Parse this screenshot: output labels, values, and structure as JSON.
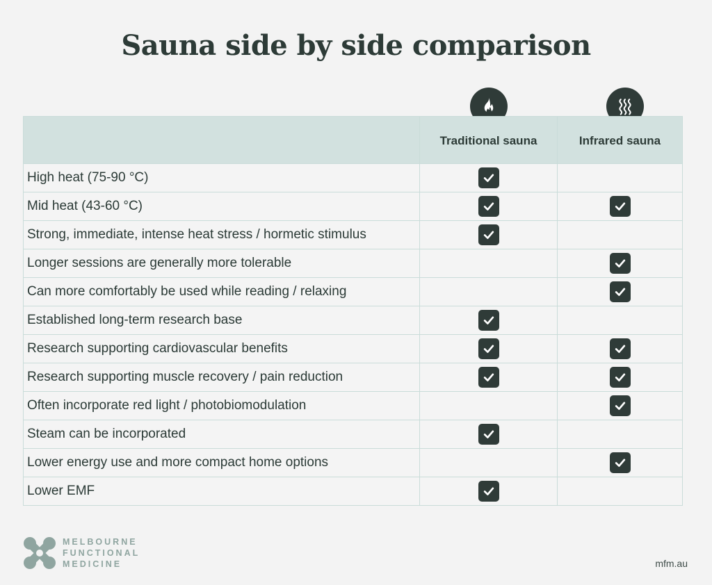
{
  "title": "Sauna side by side comparison",
  "colors": {
    "dark": "#2f3b38",
    "header_bg": "#d2e1df",
    "border": "#c9dcd9",
    "logo": "#8fa5a0"
  },
  "columns": [
    {
      "label": "Traditional sauna",
      "icon": "flame-icon"
    },
    {
      "label": "Infrared sauna",
      "icon": "heat-waves-icon"
    }
  ],
  "rows": [
    {
      "label": "High heat (75-90 °C)",
      "traditional": true,
      "infrared": false
    },
    {
      "label": "Mid heat (43-60 °C)",
      "traditional": true,
      "infrared": true
    },
    {
      "label": "Strong, immediate, intense heat stress / hormetic stimulus",
      "traditional": true,
      "infrared": false
    },
    {
      "label": "Longer sessions are generally more tolerable",
      "traditional": false,
      "infrared": true
    },
    {
      "label": "Can more comfortably be used while reading / relaxing",
      "traditional": false,
      "infrared": true
    },
    {
      "label": "Established long-term research base",
      "traditional": true,
      "infrared": false
    },
    {
      "label": "Research supporting cardiovascular benefits",
      "traditional": true,
      "infrared": true
    },
    {
      "label": "Research supporting muscle recovery / pain reduction",
      "traditional": true,
      "infrared": true
    },
    {
      "label": "Often incorporate red light / photobiomodulation",
      "traditional": false,
      "infrared": true
    },
    {
      "label": "Steam can be incorporated",
      "traditional": true,
      "infrared": false
    },
    {
      "label": "Lower energy use and more compact home options",
      "traditional": false,
      "infrared": true
    },
    {
      "label": "Lower EMF",
      "traditional": true,
      "infrared": false
    }
  ],
  "logo": {
    "line1": "MELBOURNE",
    "line2": "FUNCTIONAL",
    "line3": "MEDICINE"
  },
  "website": "mfm.au"
}
